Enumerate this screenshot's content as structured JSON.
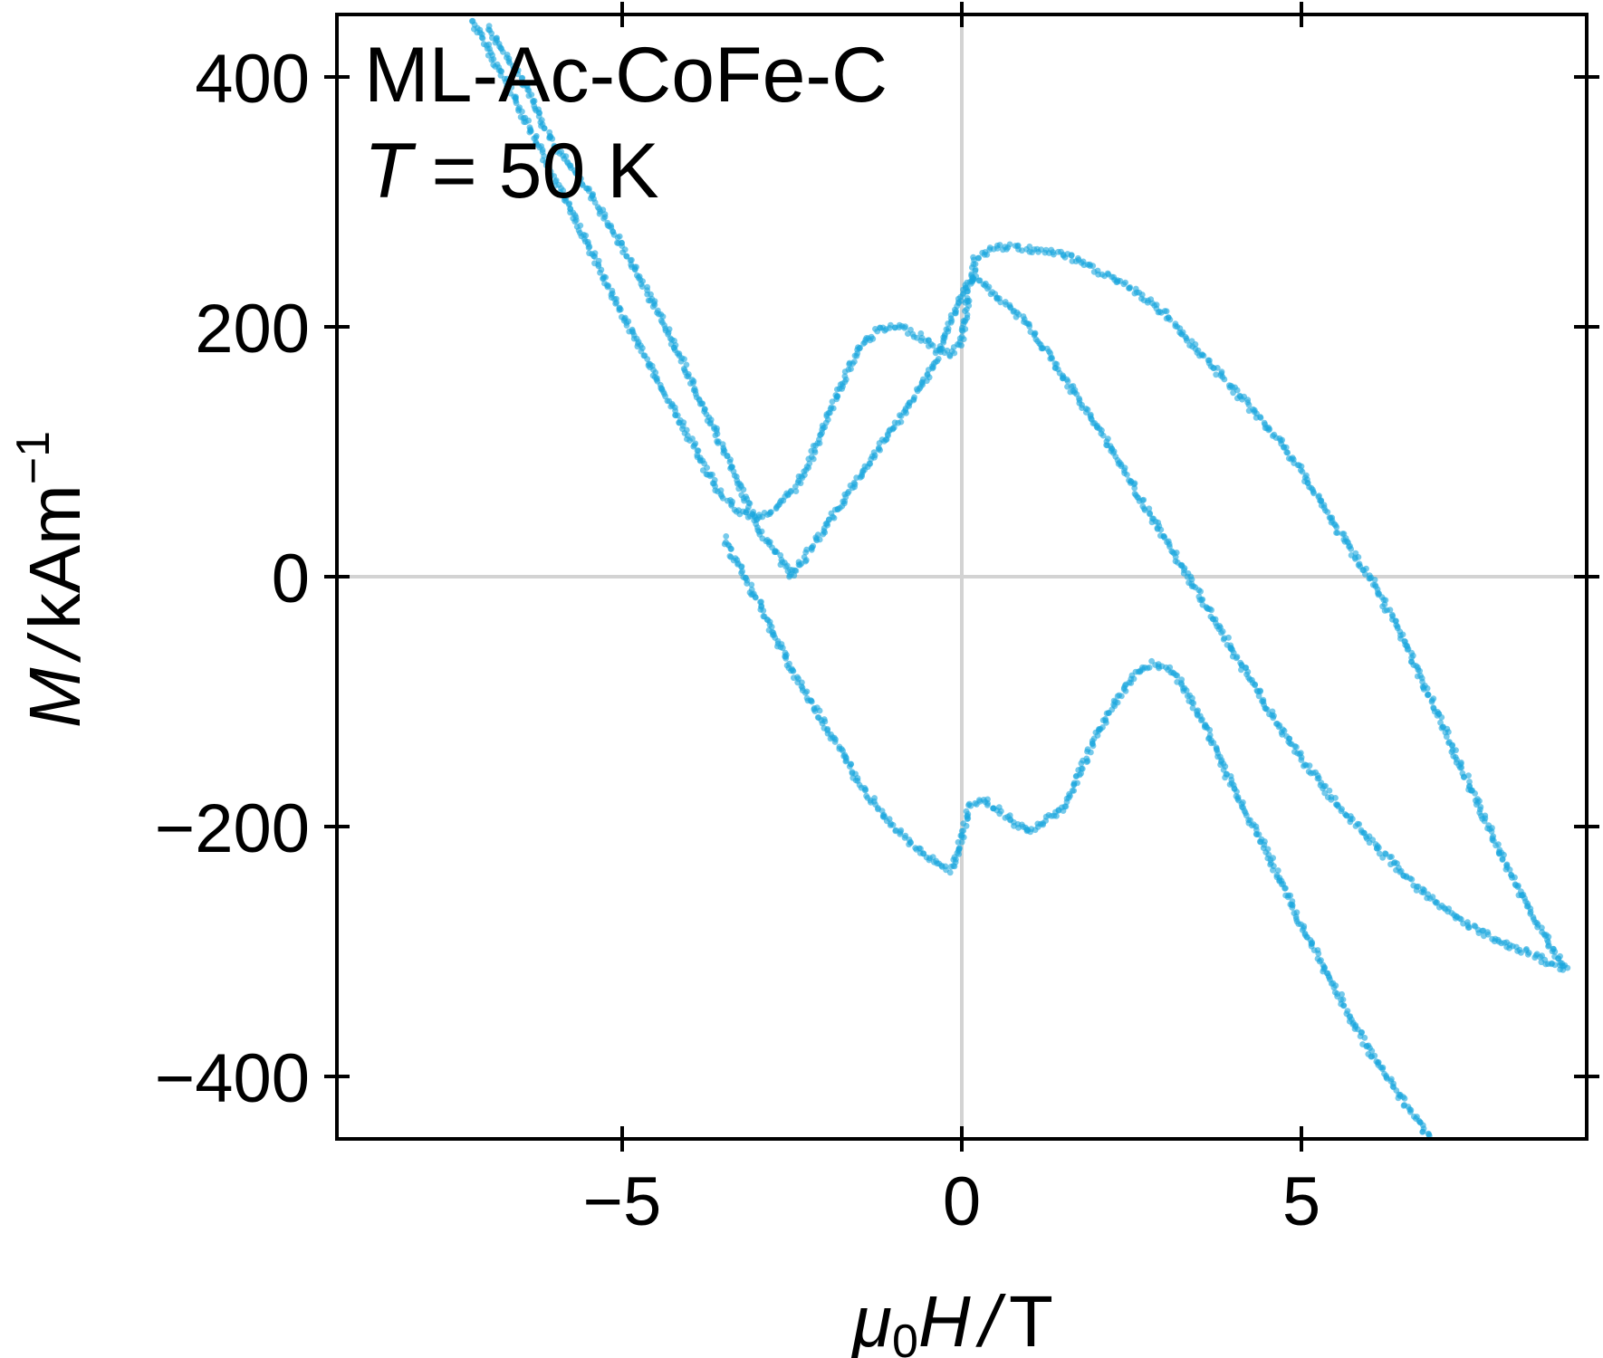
{
  "chart_data": {
    "type": "scatter",
    "title": "",
    "annotations": {
      "sample": "ML-Ac-CoFe-C",
      "temp_symbol": "T",
      "temp_value": "= 50 K"
    },
    "xlabel": {
      "sym1": "μ",
      "sub": "0",
      "sym2": "H",
      "sep": "/",
      "unit": "T"
    },
    "ylabel": {
      "sym": "M",
      "sep": "/",
      "unit": "kAm",
      "exp": "−1"
    },
    "xlim": [
      -9.2,
      9.2
    ],
    "ylim": [
      -450,
      450
    ],
    "xticks": [
      -5,
      0,
      5
    ],
    "yticks": [
      -400,
      -200,
      0,
      200,
      400
    ],
    "xtick_labels": [
      "−5",
      "0",
      "5"
    ],
    "ytick_labels": [
      "−400",
      "−200",
      "0",
      "200",
      "400"
    ],
    "grid": "zero-lines",
    "marker_color": "#1aa7dd",
    "zero_line_color": "#d3d3d3",
    "series": [
      {
        "x": [
          -7.2,
          -6.6,
          -6.0,
          -5.5,
          -5.0,
          -4.5,
          -4.0,
          -3.6,
          -3.3,
          -3.0,
          -2.7,
          -2.4,
          -2.1,
          -1.8,
          -1.5,
          -1.2,
          -0.9,
          -0.6,
          -0.35,
          -0.15,
          0.0,
          0.1,
          0.2,
          0.4,
          0.7,
          1.0,
          1.5,
          2.0,
          2.5,
          3.0,
          3.5,
          4.0,
          4.5,
          5.0,
          5.5,
          6.0,
          6.5,
          7.0,
          7.5,
          8.0,
          8.5,
          8.9
        ],
        "y": [
          445,
          385,
          320,
          265,
          210,
          160,
          110,
          70,
          52,
          48,
          55,
          75,
          110,
          150,
          185,
          198,
          200,
          192,
          182,
          178,
          190,
          225,
          255,
          262,
          264,
          262,
          258,
          245,
          230,
          210,
          180,
          150,
          120,
          85,
          40,
          0,
          -50,
          -110,
          -170,
          -230,
          -280,
          -315
        ]
      },
      {
        "x": [
          8.9,
          8.5,
          8.0,
          7.5,
          7.0,
          6.5,
          6.0,
          5.5,
          5.0,
          4.5,
          4.0,
          3.5,
          3.0,
          2.5,
          2.0,
          1.5,
          1.0,
          0.5,
          0.2,
          0.1,
          -0.2,
          -0.5,
          -1.0,
          -1.5,
          -2.0,
          -2.5,
          -3.0,
          -3.5,
          -4.0,
          -4.5,
          -5.0,
          -5.5,
          -6.0,
          -6.5,
          -7.0
        ],
        "y": [
          -315,
          -305,
          -295,
          -280,
          -262,
          -238,
          -210,
          -180,
          -145,
          -105,
          -60,
          -15,
          30,
          75,
          120,
          160,
          200,
          225,
          240,
          238,
          200,
          160,
          120,
          80,
          40,
          0,
          40,
          100,
          160,
          215,
          265,
          310,
          345,
          400,
          440
        ]
      },
      {
        "x": [
          -3.5,
          -3.0,
          -2.5,
          -2.0,
          -1.5,
          -1.0,
          -0.5,
          -0.15,
          0.0,
          0.1,
          0.3,
          0.6,
          1.0,
          1.5,
          2.0,
          2.5,
          2.8,
          3.1,
          3.5,
          4.0,
          4.5,
          5.0,
          5.5,
          6.0,
          6.5,
          6.9
        ],
        "y": [
          30,
          -20,
          -75,
          -120,
          -165,
          -200,
          -225,
          -235,
          -210,
          -185,
          -178,
          -190,
          -205,
          -185,
          -125,
          -80,
          -70,
          -75,
          -110,
          -170,
          -220,
          -280,
          -330,
          -380,
          -420,
          -450
        ]
      }
    ]
  }
}
